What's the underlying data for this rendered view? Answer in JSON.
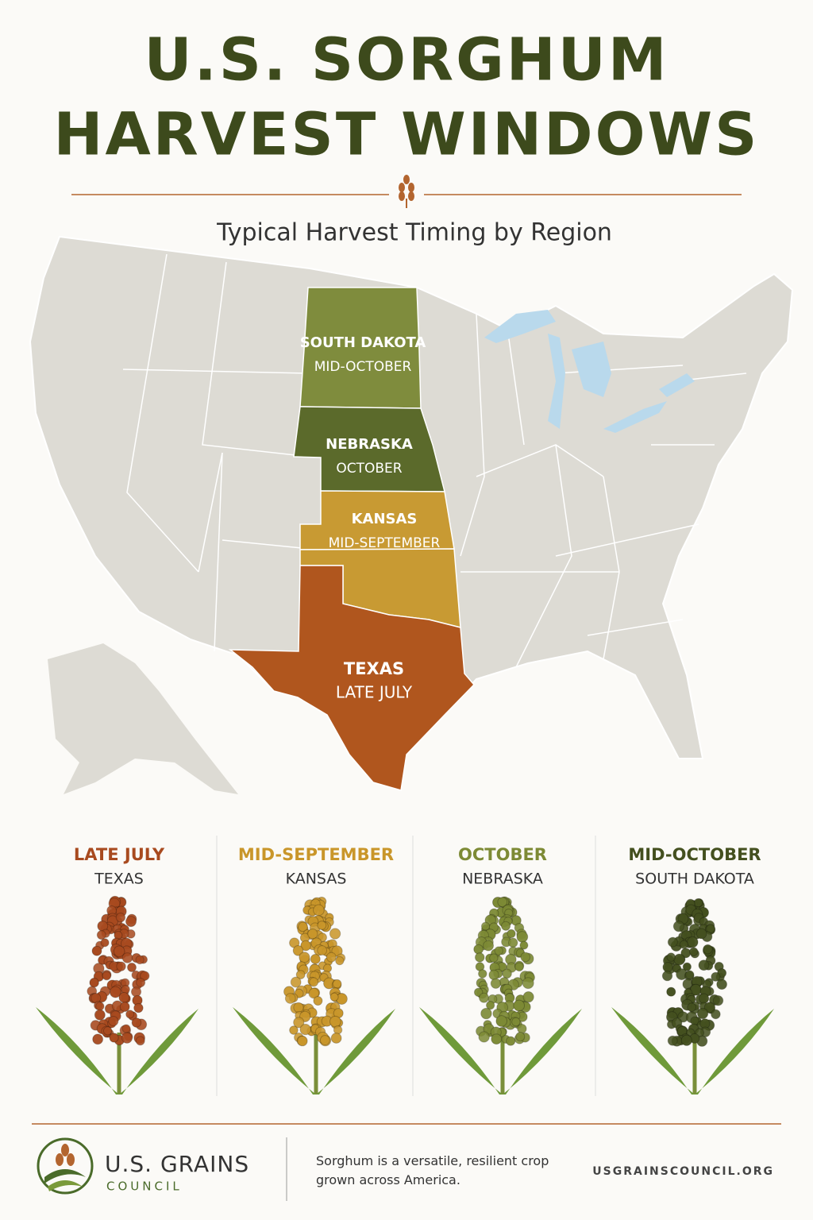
{
  "header": {
    "title_line1": "U.S. SORGHUM",
    "title_line2": "HARVEST WINDOWS",
    "subtitle": "Typical Harvest Timing by Region"
  },
  "map": {
    "regions": [
      {
        "state": "SOUTH DAKOTA",
        "timing": "MID-OCTOBER",
        "color": "#7f8c3d"
      },
      {
        "state": "NEBRASKA",
        "timing": "OCTOBER",
        "color": "#5b6a2b"
      },
      {
        "state": "KANSAS",
        "timing": "MID-SEPTEMBER",
        "color": "#c89a33"
      },
      {
        "state": "TEXAS",
        "timing": "LATE JULY",
        "color": "#b0561e"
      }
    ]
  },
  "timeline": {
    "items": [
      {
        "timing": "LATE JULY",
        "state": "TEXAS",
        "color": "#a84a1f"
      },
      {
        "timing": "MID-SEPTEMBER",
        "state": "KANSAS",
        "color": "#c9962a"
      },
      {
        "timing": "OCTOBER",
        "state": "NEBRASKA",
        "color": "#7d8a35"
      },
      {
        "timing": "MID-OCTOBER",
        "state": "SOUTH DAKOTA",
        "color": "#44501f"
      }
    ]
  },
  "footer": {
    "logo_name": "U.S. GRAINS",
    "logo_sub": "COUNCIL",
    "tagline": "Sorghum is a versatile, resilient crop grown across America.",
    "url": "USGRAINSCOUNCIL.ORG"
  }
}
